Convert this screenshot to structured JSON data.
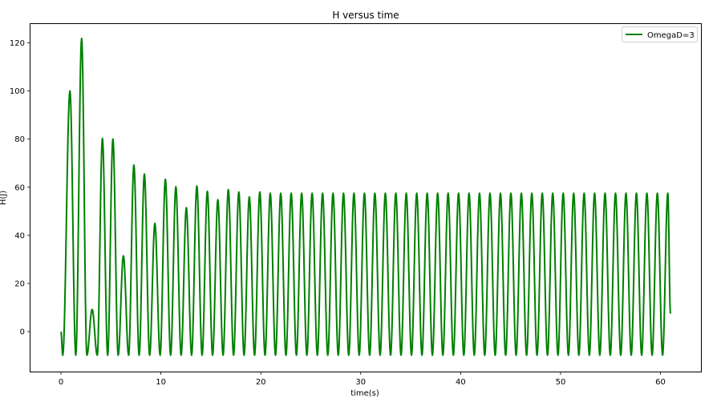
{
  "chart_data": {
    "type": "line",
    "title": "H versus time",
    "xlabel": "time(s)",
    "ylabel": "H(J)",
    "xlim": [
      -3.05,
      64.05
    ],
    "ylim": [
      -16.6,
      127.8
    ],
    "xticks": [
      0,
      10,
      20,
      30,
      40,
      50,
      60
    ],
    "yticks": [
      0,
      20,
      40,
      60,
      80,
      100,
      120
    ],
    "grid": false,
    "legend_position": "top-right",
    "series": [
      {
        "name": "OmegaD=3",
        "color": "#008000",
        "peaks": [
          {
            "t": 0.9,
            "h": 100.0
          },
          {
            "t": 2.07,
            "h": 121.8
          },
          {
            "t": 3.12,
            "h": 9.2
          },
          {
            "t": 4.15,
            "h": 80.3
          },
          {
            "t": 5.2,
            "h": 80.0
          },
          {
            "t": 6.25,
            "h": 31.5
          },
          {
            "t": 7.3,
            "h": 69.2
          },
          {
            "t": 8.35,
            "h": 65.5
          },
          {
            "t": 9.4,
            "h": 45.0
          },
          {
            "t": 10.45,
            "h": 63.3
          },
          {
            "t": 11.5,
            "h": 60.2
          },
          {
            "t": 12.55,
            "h": 51.5
          },
          {
            "t": 13.6,
            "h": 60.5
          },
          {
            "t": 14.65,
            "h": 58.3
          },
          {
            "t": 15.7,
            "h": 54.8
          },
          {
            "t": 16.75,
            "h": 59.0
          },
          {
            "t": 17.8,
            "h": 58.0
          },
          {
            "t": 18.85,
            "h": 56.0
          },
          {
            "t": 19.9,
            "h": 58.0
          }
        ],
        "steady_peak": 57.5,
        "min_value": -9.8,
        "period": 1.047,
        "t_end": 61.0,
        "h_end": 7.5
      }
    ]
  }
}
